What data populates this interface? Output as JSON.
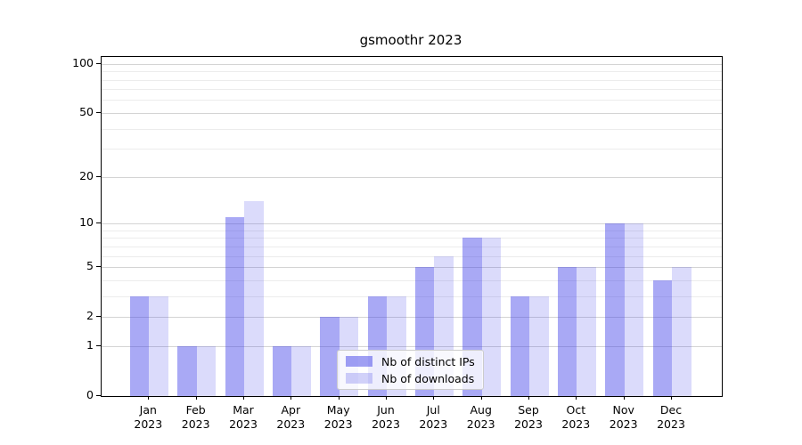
{
  "chart_data": {
    "type": "bar",
    "title": "gsmoothr 2023",
    "categories": [
      "Jan",
      "Feb",
      "Mar",
      "Apr",
      "May",
      "Jun",
      "Jul",
      "Aug",
      "Sep",
      "Oct",
      "Nov",
      "Dec"
    ],
    "x_tick_sublabel": "2023",
    "series": [
      {
        "name": "Nb of distinct IPs",
        "color": "#4040e8",
        "alpha": 0.45,
        "values": [
          3,
          1,
          11,
          1,
          2,
          3,
          5,
          8,
          3,
          5,
          10,
          4
        ]
      },
      {
        "name": "Nb of downloads",
        "color": "#4040e8",
        "alpha": 0.19,
        "values": [
          3,
          1,
          14,
          1,
          2,
          3,
          6,
          8,
          3,
          5,
          10,
          5
        ]
      }
    ],
    "xlabel": "",
    "ylabel": "",
    "yscale": "log1p",
    "ylim": [
      0,
      110
    ],
    "yticks_major": [
      0,
      1,
      2,
      5,
      10,
      20,
      50,
      100
    ],
    "yticks_minor": [
      3,
      4,
      6,
      7,
      8,
      9,
      30,
      40,
      60,
      70,
      80,
      90
    ],
    "grid": {
      "on": true,
      "major_color": "#d4d4d4",
      "minor_color": "#ececec"
    },
    "legend": {
      "position": "lower-center",
      "labels": [
        "Nb of distinct IPs",
        "Nb of downloads"
      ]
    },
    "axis_color": "#000000",
    "background_color": "#ffffff"
  }
}
